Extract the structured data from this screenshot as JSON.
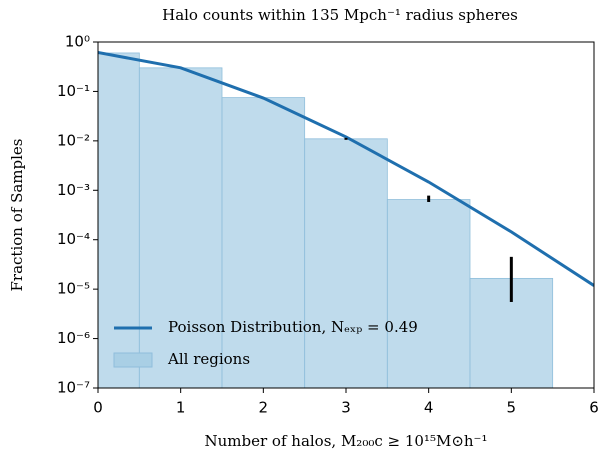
{
  "chart_data": {
    "type": "histogram",
    "title": "Halo counts within 135 Mpch⁻¹ radius spheres",
    "xlabel": "Number of halos, M₂₀₀c ≥ 10¹⁵M⊙h⁻¹",
    "ylabel": "Fraction of Samples",
    "bins": [
      -0.5,
      0.5,
      1.5,
      2.5,
      3.5,
      4.5,
      5.5
    ],
    "values": [
      0.6,
      0.3,
      0.075,
      0.011,
      0.00065,
      1.65e-05
    ],
    "hist_name": "All regions",
    "color": "#a9cfe5",
    "line": {
      "name": "Poisson Distribution, Nₑₓₚ = 0.49",
      "color": "#1f6fae",
      "x": [
        0,
        1,
        2,
        3,
        4,
        5,
        6
      ],
      "values": [
        0.6126,
        0.3002,
        0.0735,
        0.012,
        0.00147,
        0.000144,
        1.18e-05
      ]
    },
    "errorbars": {
      "color": "#000000",
      "x": [
        3,
        4,
        5
      ],
      "low": [
        0.0105,
        0.00058,
        5.5e-06
      ],
      "high": [
        0.0115,
        0.00078,
        4.5e-05
      ]
    },
    "xlim": [
      0,
      6
    ],
    "xticks": [
      0,
      1,
      2,
      3,
      4,
      5,
      6
    ],
    "ylim": [
      1e-07,
      1
    ],
    "yticks": [
      {
        "value": 1,
        "label": "10⁰"
      },
      {
        "value": 0.1,
        "label": "10⁻¹"
      },
      {
        "value": 0.01,
        "label": "10⁻²"
      },
      {
        "value": 0.001,
        "label": "10⁻³"
      },
      {
        "value": 0.0001,
        "label": "10⁻⁴"
      },
      {
        "value": 1e-05,
        "label": "10⁻⁵"
      },
      {
        "value": 1e-06,
        "label": "10⁻⁶"
      },
      {
        "value": 1e-07,
        "label": "10⁻⁷"
      }
    ],
    "log_y": true,
    "legend": "lower left"
  }
}
